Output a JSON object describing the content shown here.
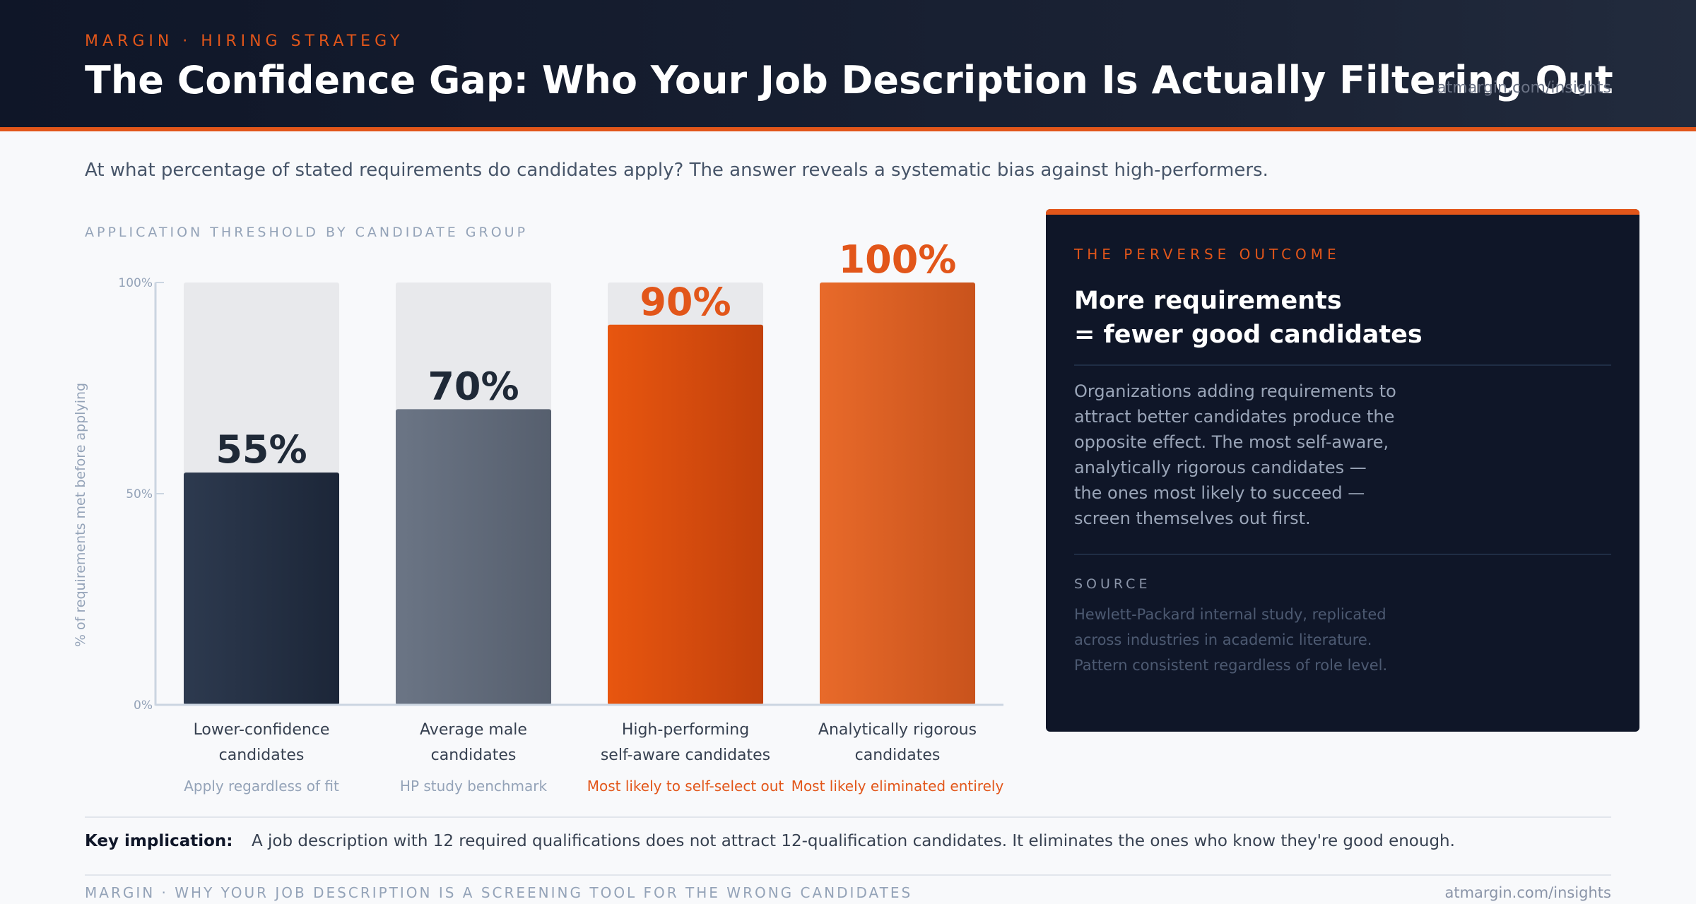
{
  "header": {
    "eyebrow": "MARGIN · HIRING STRATEGY",
    "title": "The Confidence Gap: Who Your Job Description Is Actually Filtering Out",
    "url": "atmargin.com/insights"
  },
  "subtitle": "At what percentage of stated requirements do candidates apply? The answer reveals a systematic bias against high-performers.",
  "chart_data": {
    "type": "bar",
    "title": "APPLICATION THRESHOLD BY CANDIDATE GROUP",
    "xlabel": "",
    "ylabel": "% of requirements met before applying",
    "ylim": [
      0,
      100
    ],
    "yticks": [
      {
        "value": 0,
        "label": "0%"
      },
      {
        "value": 50,
        "label": "50%"
      },
      {
        "value": 100,
        "label": "100%"
      }
    ],
    "grid": false,
    "categories": [
      [
        "Lower-confidence",
        "candidates"
      ],
      [
        "Average male",
        "candidates"
      ],
      [
        "High-performing",
        "self-aware candidates"
      ],
      [
        "Analytically rigorous",
        "candidates"
      ]
    ],
    "values": [
      55,
      70,
      90,
      100
    ],
    "value_labels": [
      "55%",
      "70%",
      "90%",
      "100%"
    ],
    "notes": [
      "Apply regardless of fit",
      "HP study benchmark",
      "Most likely to self-select out",
      "Most likely eliminated entirely"
    ],
    "colors": {
      "bar1": [
        "#2d3a4f",
        "#1c2638"
      ],
      "bar2": [
        "#6b7585",
        "#565f6e"
      ],
      "bar3": [
        "#e8560f",
        "#c2410c"
      ],
      "bar4": [
        "#e86a2a",
        "#c9531c"
      ],
      "track": "#e8e9ec",
      "label_dark": "#1f2937",
      "label_accent": "#e2561a",
      "note_muted": "#94a3b8"
    }
  },
  "panel": {
    "eyebrow": "THE PERVERSE OUTCOME",
    "title_lines": [
      "More requirements",
      "= fewer good candidates"
    ],
    "body_lines": [
      "Organizations adding requirements to",
      "attract better candidates produce the",
      "opposite effect. The most self-aware,",
      "analytically rigorous candidates —",
      "the ones most likely to succeed —",
      "screen themselves out first."
    ],
    "source_label": "SOURCE",
    "source_lines": [
      "Hewlett-Packard internal study, replicated",
      "across industries in academic literature.",
      "Pattern consistent regardless of role level."
    ]
  },
  "implication": {
    "label": "Key implication:",
    "text": "A job description with 12 required qualifications does not attract 12-qualification candidates. It eliminates the ones who know they're good enough."
  },
  "footer": {
    "left": "MARGIN · WHY YOUR JOB DESCRIPTION IS A SCREENING TOOL FOR THE WRONG CANDIDATES",
    "right": "atmargin.com/insights"
  }
}
